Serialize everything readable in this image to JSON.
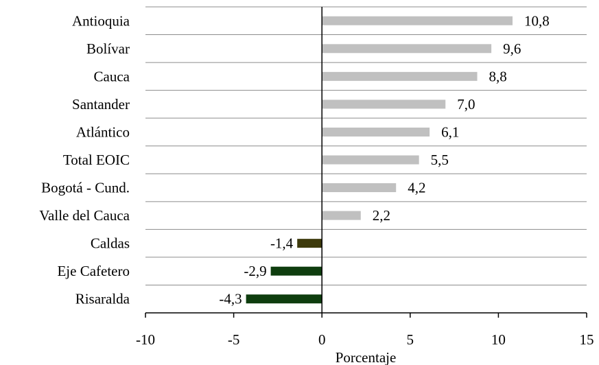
{
  "chart_data": {
    "type": "bar",
    "orientation": "horizontal",
    "title": "",
    "xlabel": "Porcentaje",
    "ylabel": "",
    "xlim": [
      -10,
      15
    ],
    "x_ticks": [
      -10,
      -5,
      0,
      5,
      10,
      15
    ],
    "x_tick_labels": [
      "-10",
      "-5",
      "0",
      "5",
      "10",
      "15"
    ],
    "grid": "horizontal lines between categories",
    "categories": [
      "Antioquia",
      "Bolívar",
      "Cauca",
      "Santander",
      "Atlántico",
      "Total EOIC",
      "Bogotá - Cund.",
      "Valle del Cauca",
      "Caldas",
      "Eje Cafetero",
      "Risaralda"
    ],
    "values": [
      10.8,
      9.6,
      8.8,
      7.0,
      6.1,
      5.5,
      4.2,
      2.2,
      -1.4,
      -2.9,
      -4.3
    ],
    "value_labels": [
      "10,8",
      "9,6",
      "8,8",
      "7,0",
      "6,1",
      "5,5",
      "4,2",
      "2,2",
      "-1,4",
      "-2,9",
      "-4,3"
    ],
    "bar_colors": [
      "#c0c0c0",
      "#c0c0c0",
      "#c0c0c0",
      "#c0c0c0",
      "#c0c0c0",
      "#c0c0c0",
      "#c0c0c0",
      "#c0c0c0",
      "#3d3a0c",
      "#0e3d0e",
      "#0e3d0e"
    ]
  }
}
